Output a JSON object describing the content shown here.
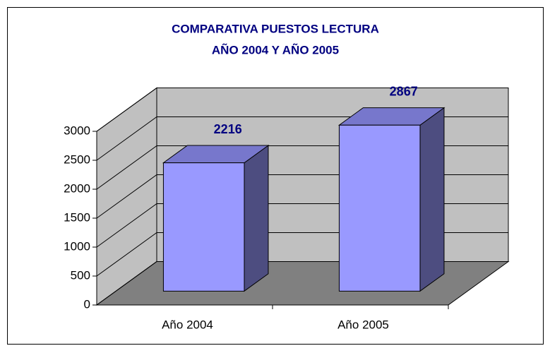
{
  "chart_data": {
    "type": "bar3d",
    "title": [
      "COMPARATIVA PUESTOS LECTURA",
      "AÑO 2004 Y AÑO 2005"
    ],
    "categories": [
      "Año 2004",
      "Año 2005"
    ],
    "values": [
      2216,
      2867
    ],
    "color": "#9999ff",
    "ylim": [
      0,
      3000
    ],
    "yticks": [
      0,
      500,
      1000,
      1500,
      2000,
      2500,
      3000
    ],
    "grid": true
  }
}
